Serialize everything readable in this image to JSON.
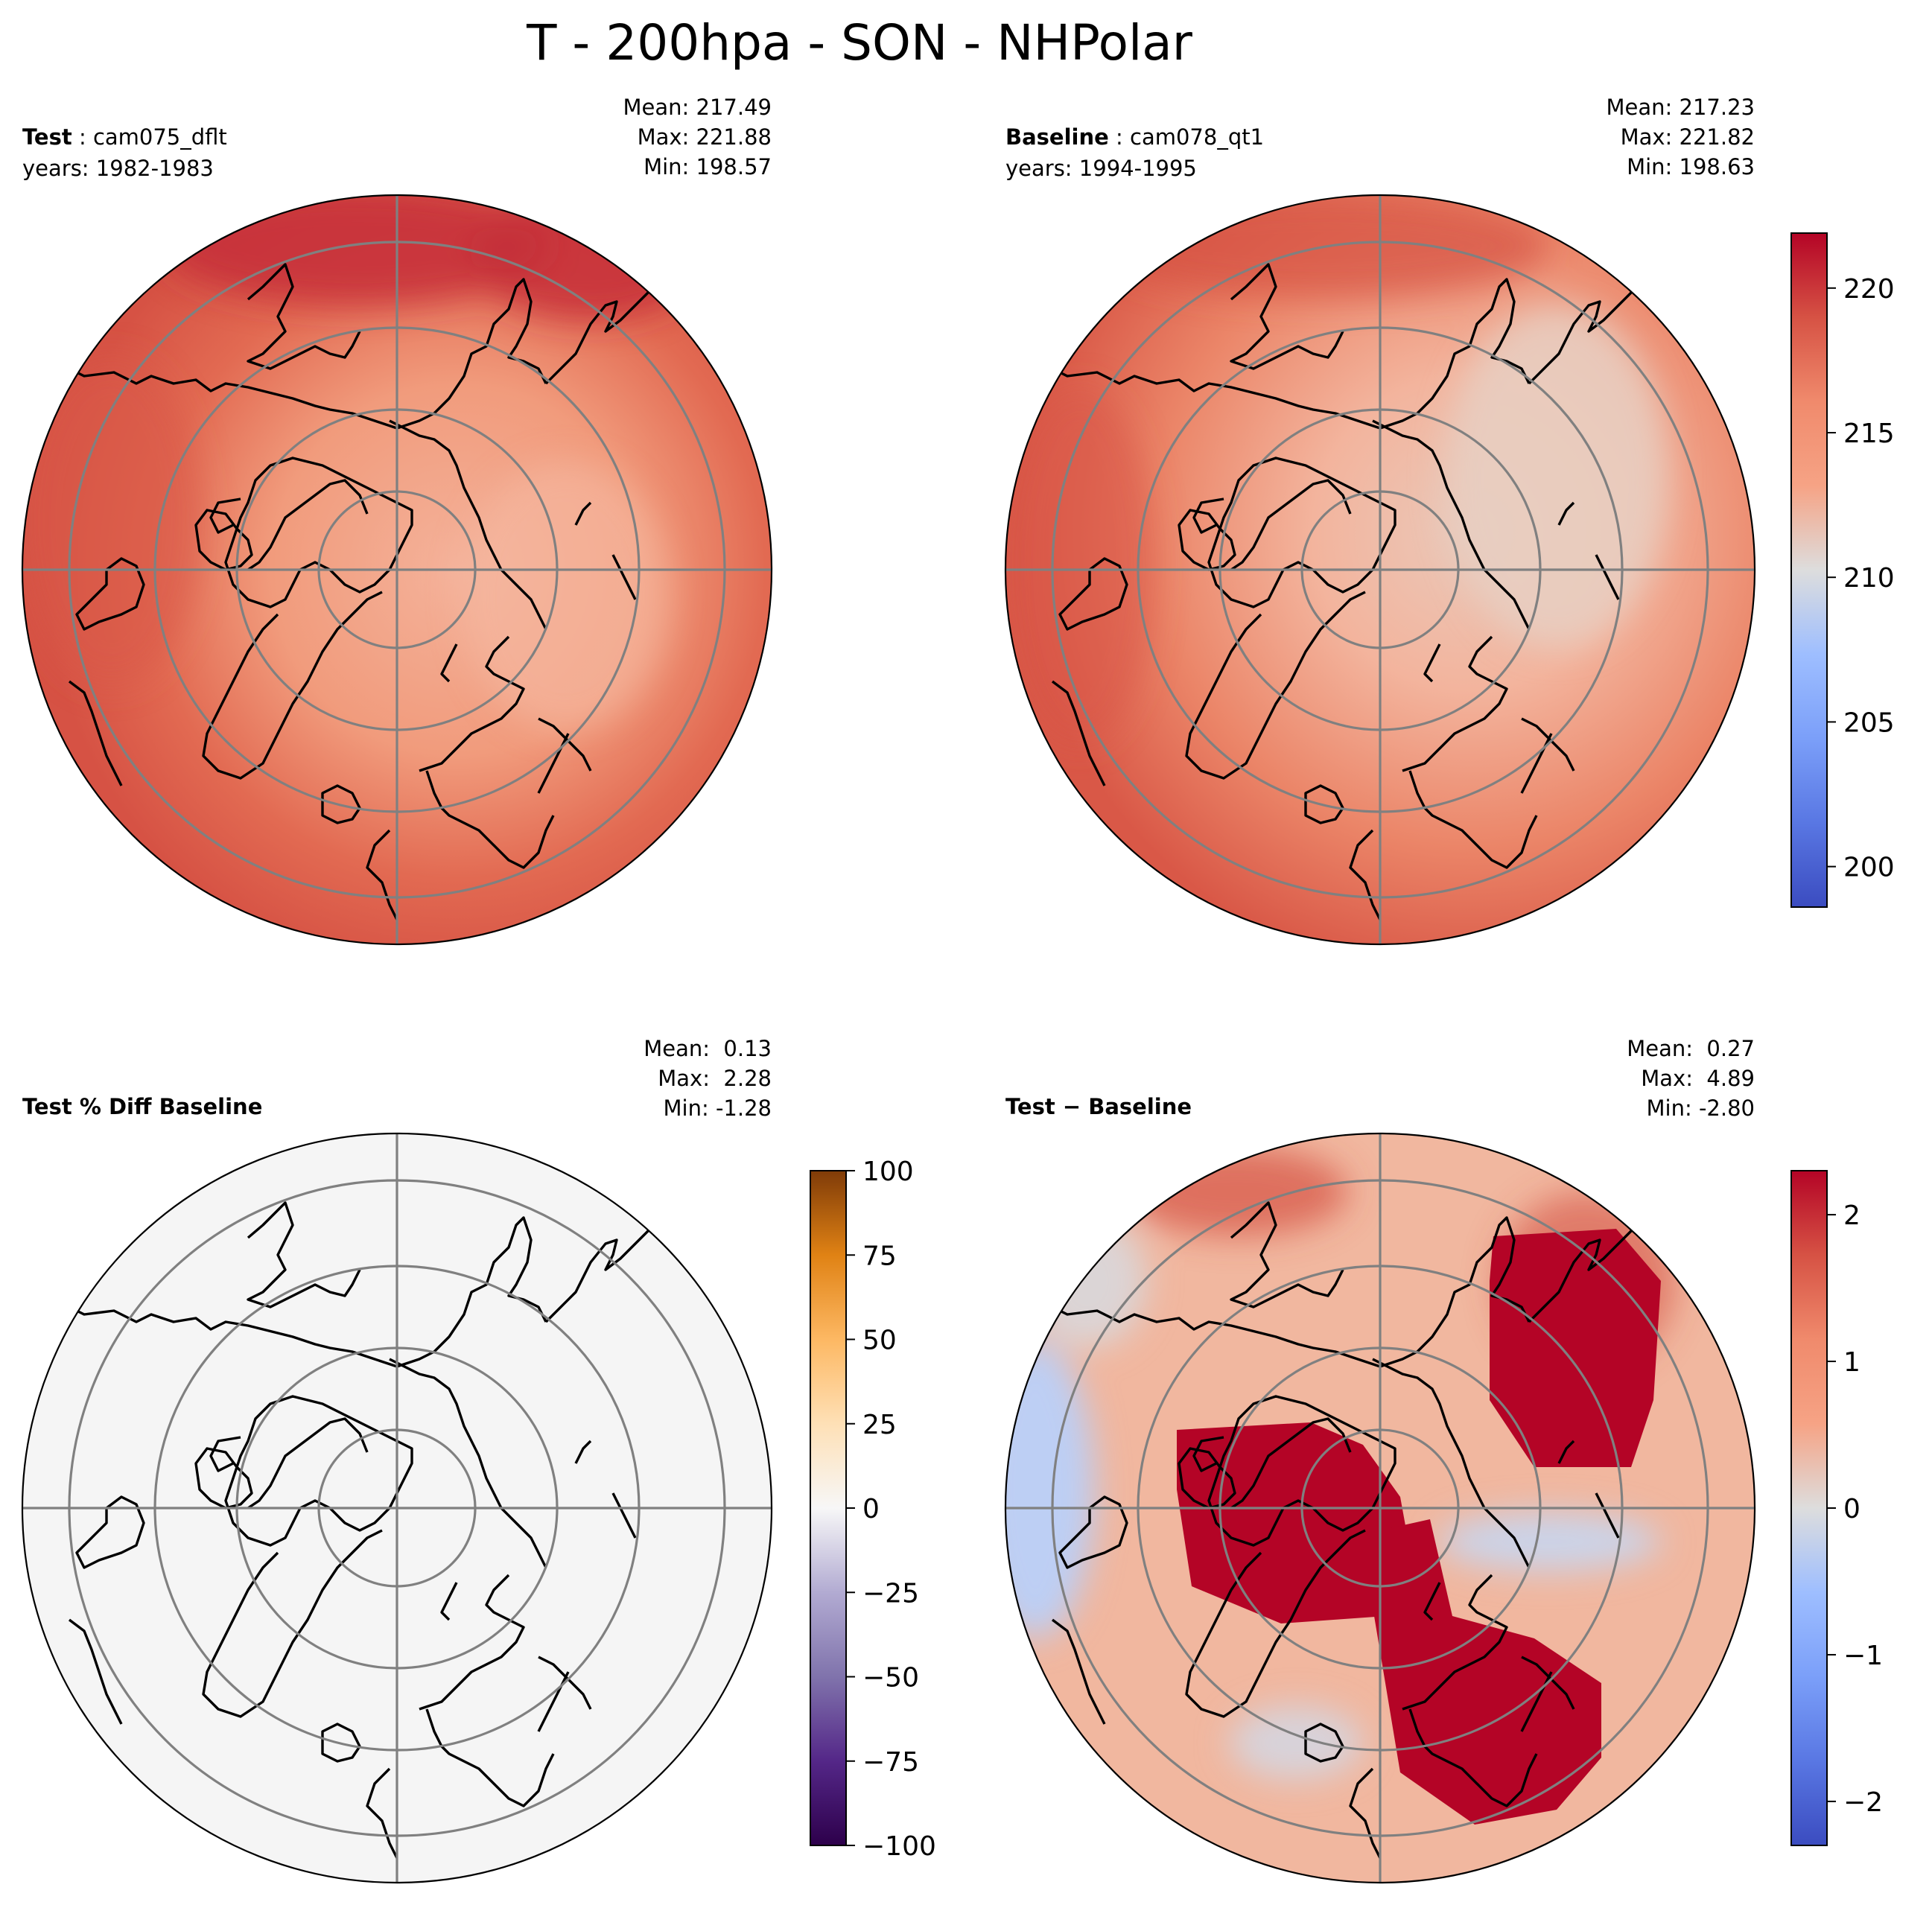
{
  "figure": {
    "title": "T - 200hpa - SON - NHPolar"
  },
  "panels": {
    "test": {
      "label_bold": "Test",
      "label_rest": ": cam075_dflt",
      "years": "years: 1982-1983",
      "mean": "Mean: 217.49",
      "max": "Max: 221.88",
      "min": "Min: 198.57"
    },
    "baseline": {
      "label_bold": "Baseline",
      "label_rest": ": cam078_qt1",
      "years": "years: 1994-1995",
      "mean": "Mean: 217.23",
      "max": "Max: 221.82",
      "min": "Min: 198.63"
    },
    "pctdiff": {
      "label_bold": "Test % Diff Baseline",
      "mean": "Mean:  0.13",
      "max": "Max:  2.28",
      "min": "Min: -1.28"
    },
    "diff": {
      "label_bold": "Test − Baseline",
      "mean": "Mean:  0.27",
      "max": "Max:  4.89",
      "min": "Min: -2.80"
    }
  },
  "colorbars": {
    "field": {
      "ticks": [
        "200",
        "205",
        "210",
        "215",
        "220"
      ],
      "range": [
        198.6,
        221.9
      ],
      "cmap": "coolwarm"
    },
    "pctdiff": {
      "ticks": [
        "−100",
        "−75",
        "−50",
        "−25",
        "0",
        "25",
        "50",
        "75",
        "100"
      ],
      "range": [
        -100,
        100
      ],
      "cmap": "PuOr_r"
    },
    "diff": {
      "ticks": [
        "−2",
        "−1",
        "0",
        "1",
        "2"
      ],
      "range": [
        -2.3,
        2.3
      ],
      "cmap": "coolwarm"
    }
  },
  "colors": {
    "gridline": "#808080",
    "coastline": "#000000",
    "warm_red": "#b40426",
    "cool_blue": "#3b4cc0",
    "neutral": "#dddddd"
  }
}
